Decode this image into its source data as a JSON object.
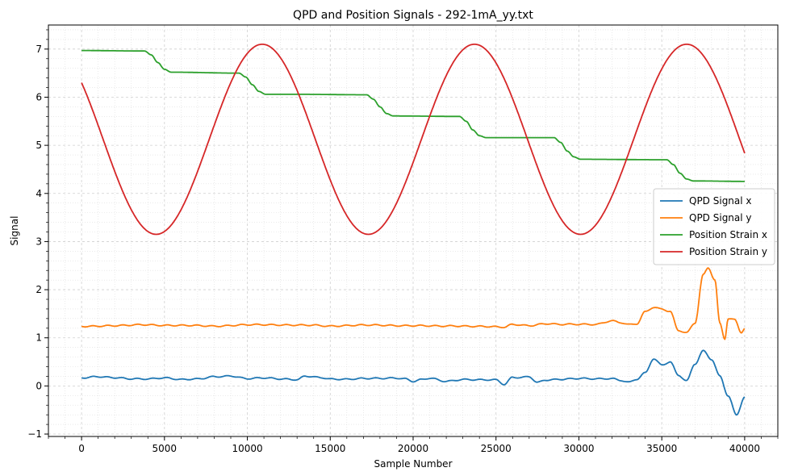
{
  "chart_data": {
    "type": "line",
    "title": "QPD and Position Signals - 292-1mA_yy.txt",
    "xlabel": "Sample Number",
    "ylabel": "Signal",
    "xlim": [
      -2000,
      42000
    ],
    "ylim": [
      -1.05,
      7.5
    ],
    "xticks": [
      0,
      5000,
      10000,
      15000,
      20000,
      25000,
      30000,
      35000,
      40000
    ],
    "xtick_labels": [
      "0",
      "5000",
      "10000",
      "15000",
      "20000",
      "25000",
      "30000",
      "35000",
      "40000"
    ],
    "yticks": [
      -1,
      0,
      1,
      2,
      3,
      4,
      5,
      6,
      7
    ],
    "ytick_labels": [
      "−1",
      "0",
      "1",
      "2",
      "3",
      "4",
      "5",
      "6",
      "7"
    ],
    "grid": "on (major and minor, dotted)",
    "legend_position": "center-right",
    "series": [
      {
        "name": "QPD Signal x",
        "color": "#1f77b4",
        "x": [
          0,
          1000,
          2000,
          3000,
          4000,
          5000,
          6000,
          7000,
          8000,
          9000,
          10000,
          11000,
          12000,
          13000,
          13500,
          14500,
          15000,
          16000,
          17000,
          18000,
          19000,
          19500,
          20000,
          20500,
          21000,
          22000,
          23000,
          24000,
          25000,
          25500,
          26000,
          26500,
          27000,
          27500,
          28000,
          29000,
          30000,
          31000,
          32000,
          32500,
          33000,
          33500,
          34000,
          34500,
          35000,
          35500,
          36000,
          36500,
          37000,
          37500,
          38000,
          38500,
          39000,
          39500,
          40000
        ],
        "y": [
          0.17,
          0.2,
          0.18,
          0.15,
          0.14,
          0.16,
          0.13,
          0.15,
          0.2,
          0.21,
          0.15,
          0.16,
          0.14,
          0.13,
          0.21,
          0.18,
          0.15,
          0.14,
          0.15,
          0.15,
          0.16,
          0.15,
          0.1,
          0.14,
          0.17,
          0.1,
          0.13,
          0.12,
          0.12,
          0.03,
          0.18,
          0.18,
          0.2,
          0.08,
          0.13,
          0.14,
          0.15,
          0.14,
          0.15,
          0.12,
          0.08,
          0.15,
          0.28,
          0.57,
          0.44,
          0.5,
          0.22,
          0.1,
          0.45,
          0.72,
          0.55,
          0.2,
          -0.2,
          -0.6,
          -0.22
        ]
      },
      {
        "name": "QPD Signal y",
        "color": "#ff7f0e",
        "x": [
          0,
          2000,
          3500,
          5000,
          7000,
          8000,
          10000,
          12000,
          14000,
          15000,
          17000,
          19000,
          20500,
          22000,
          24000,
          25500,
          26000,
          27000,
          28000,
          29000,
          31000,
          32000,
          32500,
          33000,
          33500,
          34000,
          34500,
          35000,
          35500,
          36000,
          36500,
          37000,
          37500,
          37800,
          38200,
          38500,
          38800,
          39000,
          39400,
          39800,
          40000
        ],
        "y": [
          1.24,
          1.26,
          1.27,
          1.25,
          1.26,
          1.25,
          1.27,
          1.26,
          1.27,
          1.25,
          1.26,
          1.25,
          1.26,
          1.25,
          1.23,
          1.22,
          1.28,
          1.26,
          1.3,
          1.28,
          1.27,
          1.35,
          1.32,
          1.28,
          1.3,
          1.55,
          1.64,
          1.6,
          1.55,
          1.15,
          1.1,
          1.3,
          2.3,
          2.45,
          2.2,
          1.3,
          0.98,
          1.4,
          1.38,
          1.12,
          1.2
        ]
      },
      {
        "name": "Position Strain x",
        "color": "#2ca02c",
        "x": [
          0,
          3800,
          4200,
          4600,
          5000,
          5400,
          9500,
          9900,
          10300,
          10700,
          11100,
          13000,
          17200,
          17600,
          18000,
          18400,
          18800,
          22800,
          23200,
          23600,
          24000,
          24400,
          28500,
          28900,
          29300,
          29700,
          30100,
          35300,
          35700,
          36100,
          36500,
          36900,
          40000
        ],
        "y": [
          6.97,
          6.96,
          6.88,
          6.72,
          6.58,
          6.52,
          6.5,
          6.42,
          6.26,
          6.12,
          6.06,
          6.06,
          6.05,
          5.96,
          5.8,
          5.66,
          5.61,
          5.6,
          5.5,
          5.32,
          5.2,
          5.16,
          5.16,
          5.06,
          4.88,
          4.76,
          4.71,
          4.7,
          4.6,
          4.42,
          4.3,
          4.26,
          4.25
        ]
      },
      {
        "name": "Position Strain y",
        "color": "#d62728",
        "period": 12800,
        "phase_min_sample": 4500,
        "min": 3.15,
        "max": 7.1,
        "x": [
          0,
          4500,
          11000,
          17300,
          23800,
          30100,
          36600,
          40000
        ],
        "y": [
          6.2,
          3.15,
          7.1,
          3.15,
          7.1,
          3.15,
          7.1,
          5.03
        ]
      }
    ]
  }
}
